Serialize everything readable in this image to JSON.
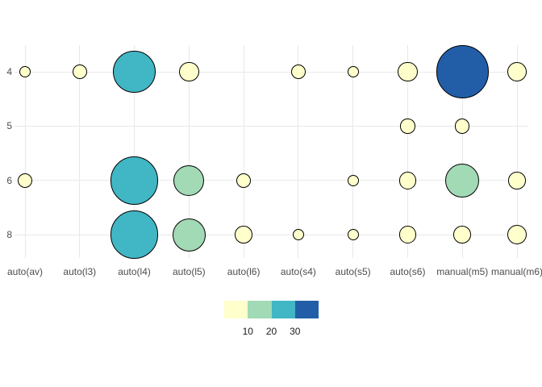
{
  "chart_data": {
    "type": "bubble",
    "title": "",
    "xlabel": "",
    "ylabel": "",
    "x_categories": [
      "auto(av)",
      "auto(l3)",
      "auto(l4)",
      "auto(l5)",
      "auto(l6)",
      "auto(s4)",
      "auto(s5)",
      "auto(s6)",
      "manual(m5)",
      "manual(m6)"
    ],
    "y_categories": [
      "4",
      "5",
      "6",
      "8"
    ],
    "points": [
      {
        "trans": "auto(av)",
        "cyl": "4",
        "count": 1
      },
      {
        "trans": "auto(l3)",
        "cyl": "4",
        "count": 2
      },
      {
        "trans": "auto(l4)",
        "cyl": "4",
        "count": 22
      },
      {
        "trans": "auto(l5)",
        "cyl": "4",
        "count": 4
      },
      {
        "trans": "auto(s4)",
        "cyl": "4",
        "count": 2
      },
      {
        "trans": "auto(s5)",
        "cyl": "4",
        "count": 1
      },
      {
        "trans": "auto(s6)",
        "cyl": "4",
        "count": 4
      },
      {
        "trans": "manual(m5)",
        "cyl": "4",
        "count": 35
      },
      {
        "trans": "manual(m6)",
        "cyl": "4",
        "count": 4
      },
      {
        "trans": "auto(s6)",
        "cyl": "5",
        "count": 2
      },
      {
        "trans": "manual(m5)",
        "cyl": "5",
        "count": 2
      },
      {
        "trans": "auto(av)",
        "cyl": "6",
        "count": 2
      },
      {
        "trans": "auto(l4)",
        "cyl": "6",
        "count": 29
      },
      {
        "trans": "auto(l5)",
        "cyl": "6",
        "count": 11
      },
      {
        "trans": "auto(l6)",
        "cyl": "6",
        "count": 2
      },
      {
        "trans": "auto(s5)",
        "cyl": "6",
        "count": 1
      },
      {
        "trans": "auto(s6)",
        "cyl": "6",
        "count": 3
      },
      {
        "trans": "manual(m5)",
        "cyl": "6",
        "count": 14
      },
      {
        "trans": "manual(m6)",
        "cyl": "6",
        "count": 3
      },
      {
        "trans": "auto(l4)",
        "cyl": "8",
        "count": 29
      },
      {
        "trans": "auto(l5)",
        "cyl": "8",
        "count": 13
      },
      {
        "trans": "auto(l6)",
        "cyl": "8",
        "count": 3
      },
      {
        "trans": "auto(s4)",
        "cyl": "8",
        "count": 1
      },
      {
        "trans": "auto(s5)",
        "cyl": "8",
        "count": 1
      },
      {
        "trans": "auto(s6)",
        "cyl": "8",
        "count": 3
      },
      {
        "trans": "manual(m5)",
        "cyl": "8",
        "count": 3
      },
      {
        "trans": "manual(m6)",
        "cyl": "8",
        "count": 4
      }
    ],
    "legend": {
      "position": "bottom",
      "tick_labels": [
        "10",
        "20",
        "30"
      ]
    },
    "palette": {
      "bin_thresholds": [
        10,
        20,
        30
      ],
      "colors": [
        "#FFFFCC",
        "#A1DAB4",
        "#41B6C4",
        "#225EA8"
      ]
    },
    "grid": "on",
    "style": {
      "background": "#FFFFFF",
      "grid_color": "#E8E8E8",
      "axis_text_color": "#4D4D4D",
      "legend_text_color": "#1A1A1A",
      "bubble_stroke": "#000000"
    }
  }
}
